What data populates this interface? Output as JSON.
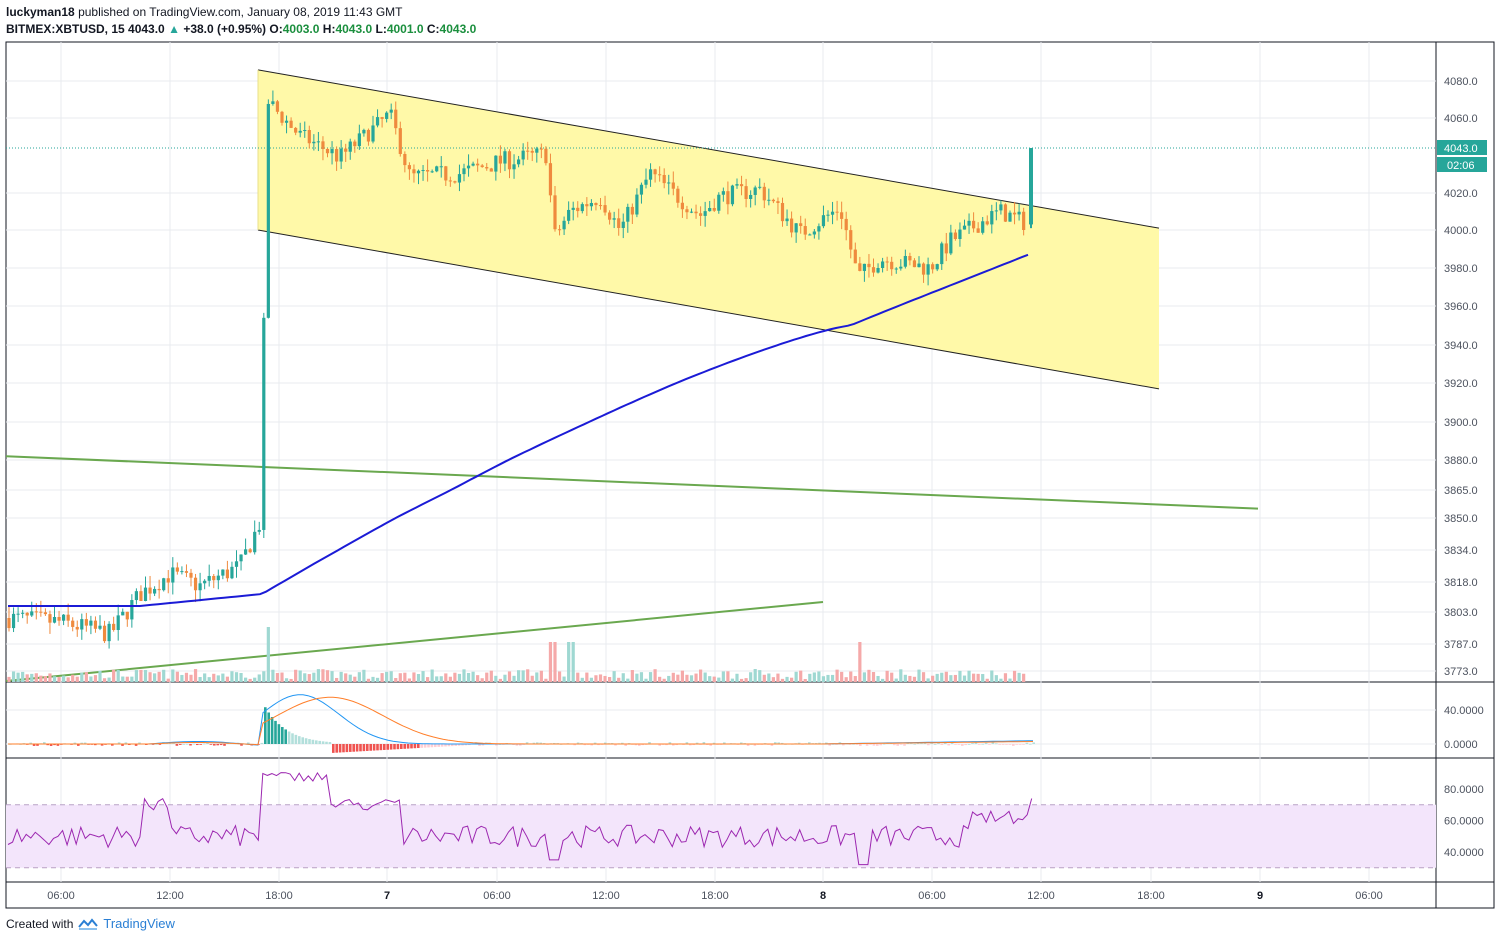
{
  "header": {
    "username": "luckyman18",
    "published_text": "published on TradingView.com, January 08, 2019 11:43 GMT",
    "symbol": "BITMEX:XBTUSD, 15",
    "last_price": "4043.0",
    "change_arrow": "▲",
    "change": "+38.0 (+0.95%)",
    "o_label": "O:",
    "o_value": "4003.0",
    "h_label": "H:",
    "h_value": "4043.0",
    "l_label": "L:",
    "l_value": "4001.0",
    "c_label": "C:",
    "c_value": "4043.0"
  },
  "price_badge": {
    "price": "4043.0",
    "countdown": "02:06"
  },
  "footer": {
    "created_with": "Created with",
    "brand": "TradingView"
  },
  "colors": {
    "up": "#26a69a",
    "down": "#ef8a3e",
    "ma": "#1b1bd6",
    "channel_fill": "#fff9a8",
    "trendline": "#6aa84f",
    "macd": "#2196f3",
    "signal": "#ff7f2a",
    "rsi": "#9c27b0",
    "rsi_band": "#f3e5fb",
    "vol_up": "#9fd8d2",
    "vol_down": "#f5a9a9"
  },
  "chart_data": {
    "type": "candlestick",
    "symbol": "BITMEX:XBTUSD",
    "interval": "15",
    "y_ticks": [
      "4080.0",
      "4060.0",
      "4043.0",
      "4020.0",
      "4000.0",
      "3980.0",
      "3960.0",
      "3940.0",
      "3920.0",
      "3900.0",
      "3880.0",
      "3865.0",
      "3850.0",
      "3834.0",
      "3818.0",
      "3803.0",
      "3787.0",
      "3773.0"
    ],
    "x_ticks": [
      "06:00",
      "12:00",
      "18:00",
      "7",
      "06:00",
      "12:00",
      "18:00",
      "8",
      "06:00",
      "12:00",
      "18:00",
      "9",
      "06:00"
    ],
    "bold_x_ticks": [
      "7",
      "8",
      "9"
    ],
    "last_price": 4043.0,
    "ohlc": {
      "open": 4003.0,
      "high": 4043.0,
      "low": 4001.0,
      "close": 4043.0
    },
    "channel": {
      "upper": [
        4086,
        4001
      ],
      "lower": [
        4000,
        3917
      ]
    },
    "trendlines": [
      {
        "name": "long-falling",
        "from": 3882,
        "to": 3855
      },
      {
        "name": "rising-support",
        "from": 3773,
        "to": 3808
      }
    ],
    "macd": {
      "ticks": [
        "40.0000",
        "0.0000"
      ]
    },
    "rsi": {
      "ticks": [
        "80.0000",
        "60.0000",
        "40.0000"
      ],
      "upper_band": 70,
      "lower_band": 30
    }
  }
}
